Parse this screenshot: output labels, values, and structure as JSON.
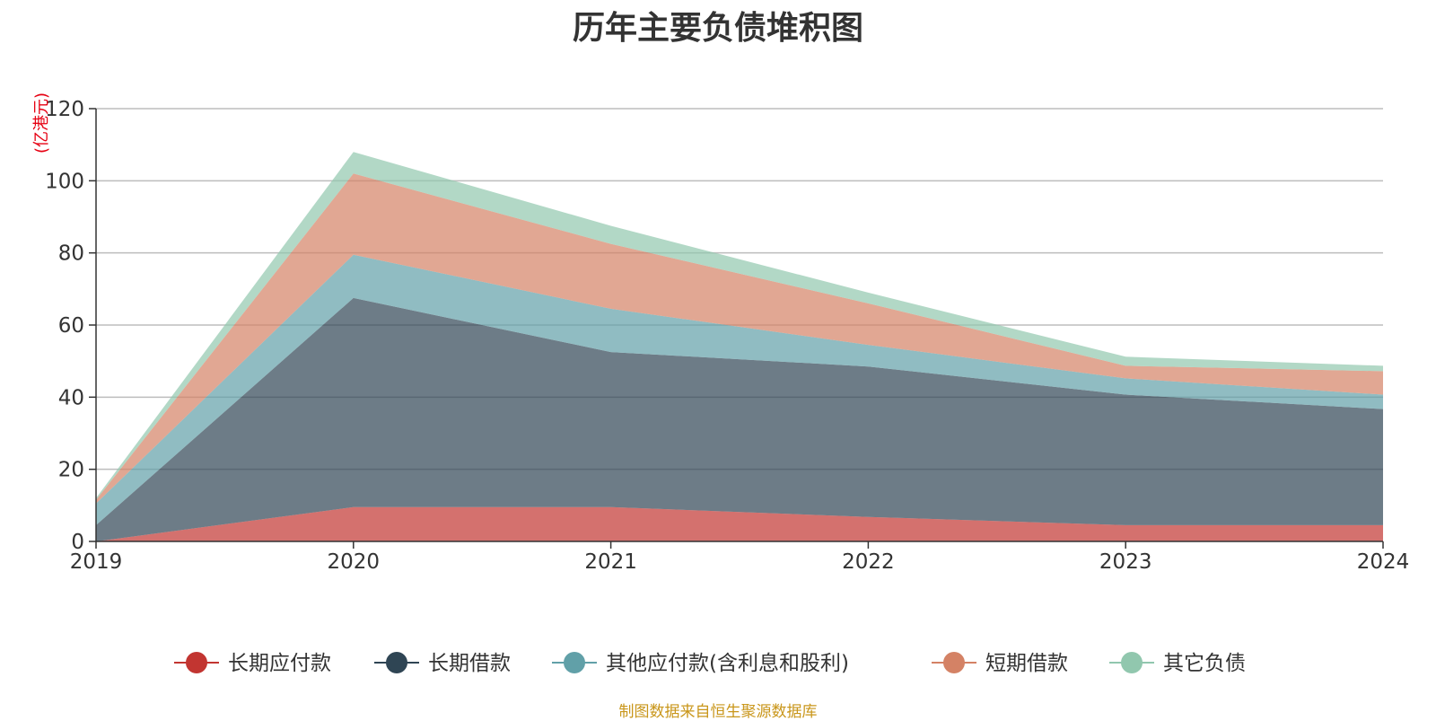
{
  "chart_data": {
    "type": "area",
    "stacked": true,
    "title": "历年主要负债堆积图",
    "ylabel": "(亿港元)",
    "source": "制图数据来自恒生聚源数据库",
    "x": [
      "2019",
      "2020",
      "2021",
      "2022",
      "2023",
      "2024"
    ],
    "ylim": [
      0,
      120
    ],
    "yticks": [
      "0",
      "20",
      "40",
      "60",
      "80",
      "100",
      "120"
    ],
    "grid": true,
    "legend_position": "bottom",
    "series": [
      {
        "name": "长期应付款",
        "color": "#c23531",
        "values": [
          0,
          9.5,
          9.5,
          6.8,
          4.5,
          4.5
        ]
      },
      {
        "name": "长期借款",
        "color": "#2f4554",
        "values": [
          4.5,
          58.0,
          43.0,
          41.7,
          36.2,
          32.2
        ]
      },
      {
        "name": "其他应付款(含利息和股利)",
        "color": "#61a0a8",
        "values": [
          6.0,
          12.0,
          12.0,
          6.0,
          4.5,
          4.0
        ]
      },
      {
        "name": "短期借款",
        "color": "#d48265",
        "values": [
          1.0,
          22.5,
          18.0,
          11.5,
          3.5,
          6.5
        ]
      },
      {
        "name": "其它负债",
        "color": "#91c7ae",
        "values": [
          0.5,
          6.0,
          5.0,
          3.0,
          2.5,
          1.5
        ]
      }
    ]
  }
}
